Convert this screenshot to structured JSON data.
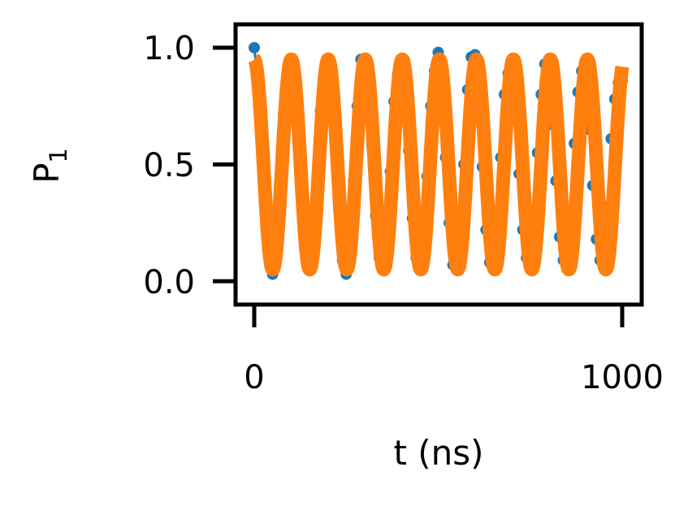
{
  "chart_data": {
    "type": "line",
    "title": "",
    "xlabel": "t (ns)",
    "ylabel": "P",
    "ylabel_subscript": "1",
    "xlim": [
      -20,
      1060
    ],
    "ylim": [
      -0.1,
      1.1
    ],
    "xticks": [
      0,
      1000
    ],
    "xtick_labels": [
      "0",
      "1000"
    ],
    "yticks": [
      0.0,
      0.5,
      1.0
    ],
    "ytick_labels": [
      "0.0",
      "0.5",
      "1.0"
    ],
    "grid": false,
    "legend": "none",
    "series": [
      {
        "kind": "scatter-connected",
        "color": "#1f77b4",
        "x": [
          0,
          10,
          20,
          30,
          40,
          50,
          60,
          70,
          80,
          90,
          100,
          110,
          120,
          130,
          140,
          150,
          160,
          170,
          180,
          190,
          200,
          210,
          220,
          230,
          240,
          250,
          260,
          270,
          280,
          290,
          300,
          310,
          320,
          330,
          340,
          350,
          360,
          370,
          380,
          390,
          400,
          410,
          420,
          430,
          440,
          450,
          460,
          470,
          480,
          490,
          500,
          510,
          520,
          530,
          540,
          550,
          560,
          570,
          580,
          590,
          600,
          610,
          620,
          630,
          640,
          650,
          660,
          670,
          680,
          690,
          700,
          710,
          720,
          730,
          740,
          750,
          760,
          770,
          780,
          790,
          800,
          810,
          820,
          830,
          840,
          850,
          860,
          870,
          880,
          890,
          900,
          910,
          920,
          930,
          940,
          950,
          960,
          970,
          980,
          990,
          1000
        ],
        "y": [
          1.0,
          0.86,
          0.64,
          0.32,
          0.11,
          0.03,
          0.11,
          0.37,
          0.72,
          0.9,
          0.92,
          0.86,
          0.64,
          0.33,
          0.11,
          0.06,
          0.12,
          0.4,
          0.73,
          0.89,
          0.92,
          0.83,
          0.61,
          0.3,
          0.09,
          0.03,
          0.13,
          0.43,
          0.75,
          0.95,
          0.92,
          0.78,
          0.58,
          0.28,
          0.1,
          0.08,
          0.17,
          0.47,
          0.77,
          0.89,
          0.91,
          0.8,
          0.56,
          0.27,
          0.1,
          0.08,
          0.16,
          0.45,
          0.75,
          0.9,
          0.98,
          0.77,
          0.53,
          0.25,
          0.07,
          0.07,
          0.18,
          0.5,
          0.82,
          0.96,
          0.97,
          0.73,
          0.49,
          0.22,
          0.08,
          0.1,
          0.22,
          0.53,
          0.8,
          0.89,
          0.89,
          0.7,
          0.46,
          0.22,
          0.1,
          0.11,
          0.27,
          0.55,
          0.8,
          0.93,
          0.85,
          0.67,
          0.43,
          0.19,
          0.09,
          0.13,
          0.3,
          0.59,
          0.81,
          0.9,
          0.9,
          0.65,
          0.41,
          0.18,
          0.09,
          0.14,
          0.32,
          0.61,
          0.78,
          0.85,
          0.86
        ]
      },
      {
        "kind": "fit-line",
        "color": "#ff7f0e",
        "model": "0.5 + 0.45*cos(2*pi*t/100.6)",
        "x_start": 0,
        "x_end": 1000
      }
    ]
  }
}
